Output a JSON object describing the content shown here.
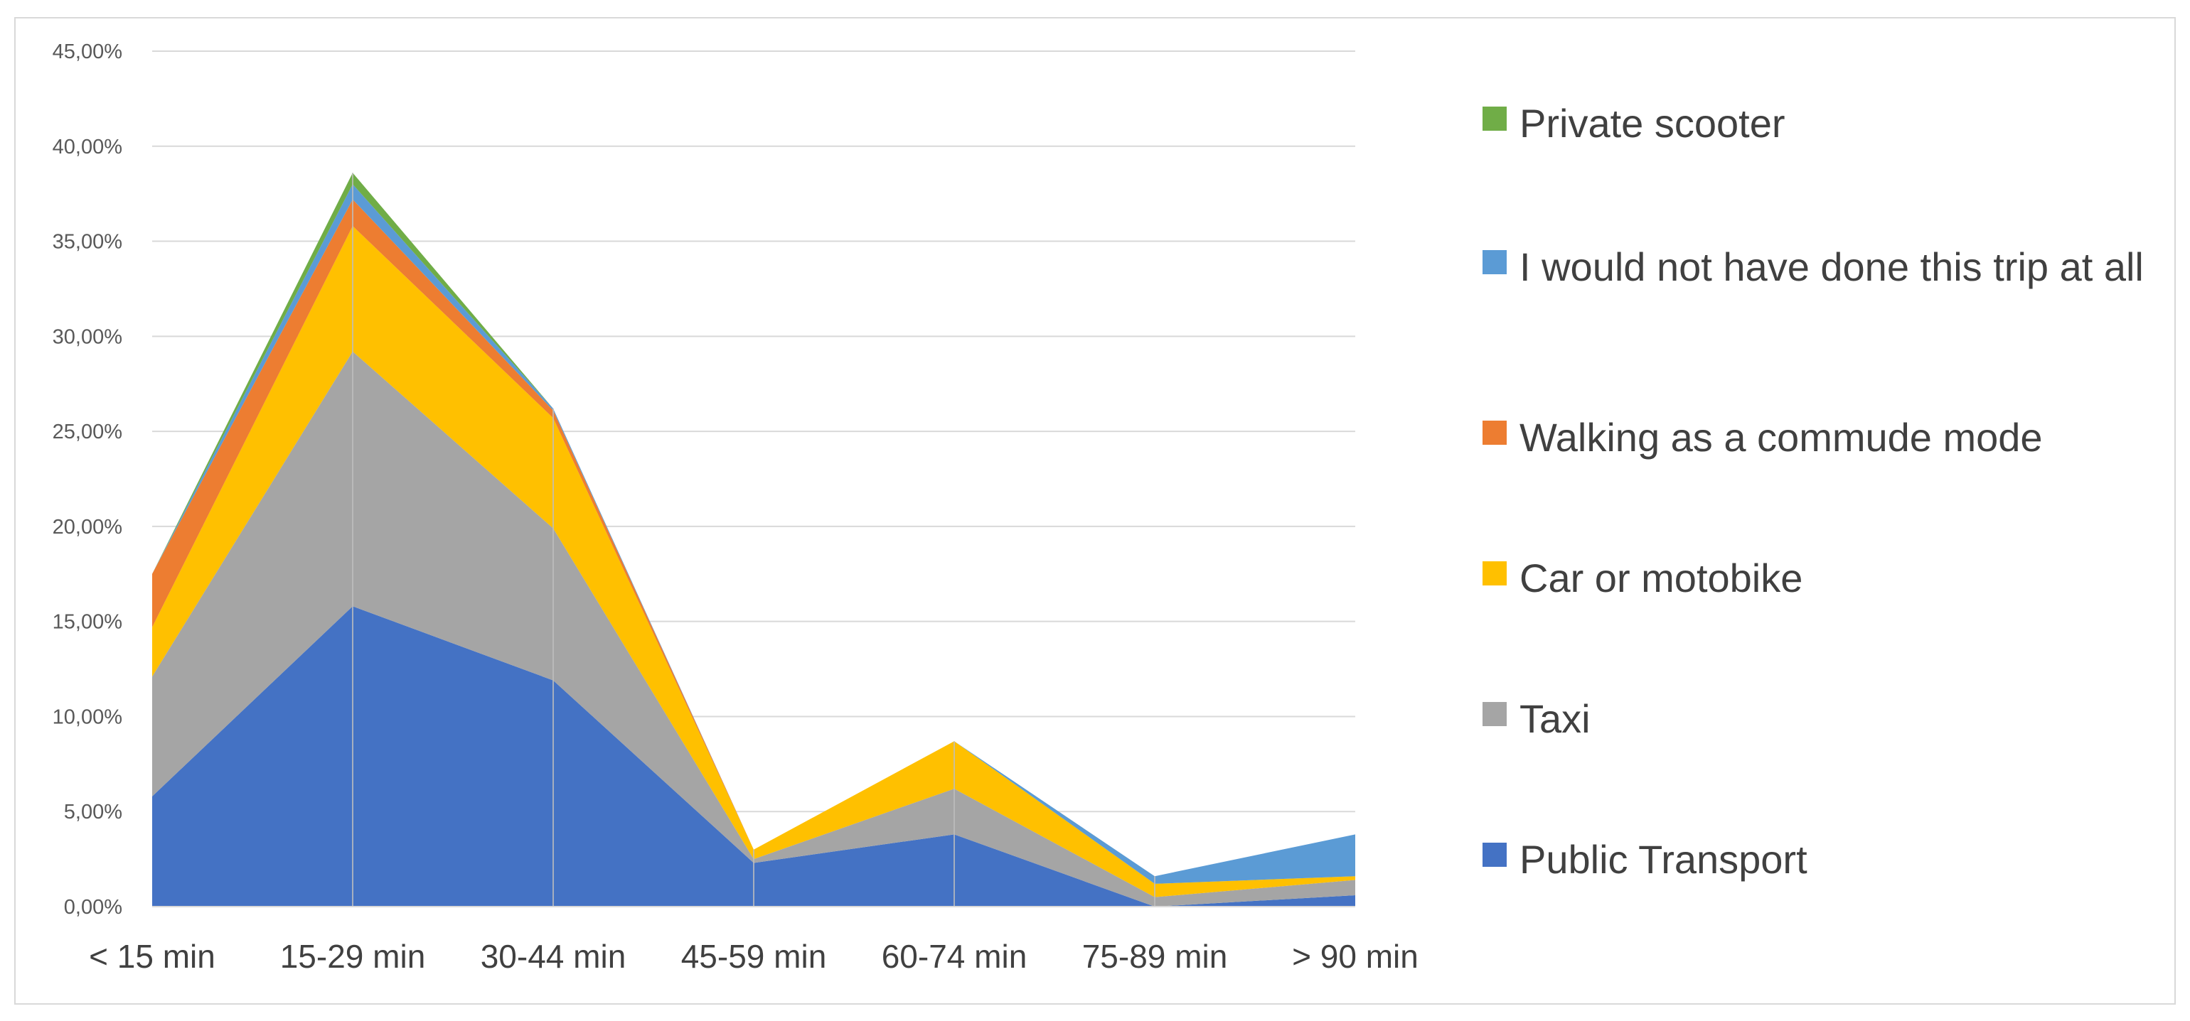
{
  "chart_data": {
    "type": "area",
    "stacked": true,
    "categories": [
      "< 15 min",
      "15-29 min",
      "30-44 min",
      "45-59 min",
      "60-74 min",
      "75-89 min",
      "> 90 min"
    ],
    "y_ticks": [
      "0,00%",
      "5,00%",
      "10,00%",
      "15,00%",
      "20,00%",
      "25,00%",
      "30,00%",
      "35,00%",
      "40,00%",
      "45,00%"
    ],
    "ylim": [
      0,
      45
    ],
    "grid": true,
    "legend_position": "right",
    "series": [
      {
        "name": "Public Transport",
        "color": "#4472c4",
        "values": [
          5.8,
          15.8,
          11.9,
          2.3,
          3.8,
          0.0,
          0.6
        ]
      },
      {
        "name": "Taxi",
        "color": "#a5a5a5",
        "values": [
          6.3,
          13.4,
          8.0,
          0.2,
          2.4,
          0.5,
          0.8
        ]
      },
      {
        "name": "Car or motobike",
        "color": "#ffc000",
        "values": [
          2.6,
          6.6,
          5.8,
          0.5,
          2.5,
          0.7,
          0.2
        ]
      },
      {
        "name": "Walking as a commude mode",
        "color": "#ed7d31",
        "values": [
          2.8,
          1.4,
          0.4,
          0.0,
          0.0,
          0.0,
          0.0
        ]
      },
      {
        "name": "I would not have done this trip at all",
        "color": "#5b9bd5",
        "values": [
          0.0,
          0.8,
          0.1,
          0.0,
          0.0,
          0.4,
          2.2
        ]
      },
      {
        "name": "Private scooter",
        "color": "#70ad47",
        "values": [
          0.0,
          0.6,
          0.0,
          0.0,
          0.0,
          0.0,
          0.0
        ]
      }
    ]
  }
}
